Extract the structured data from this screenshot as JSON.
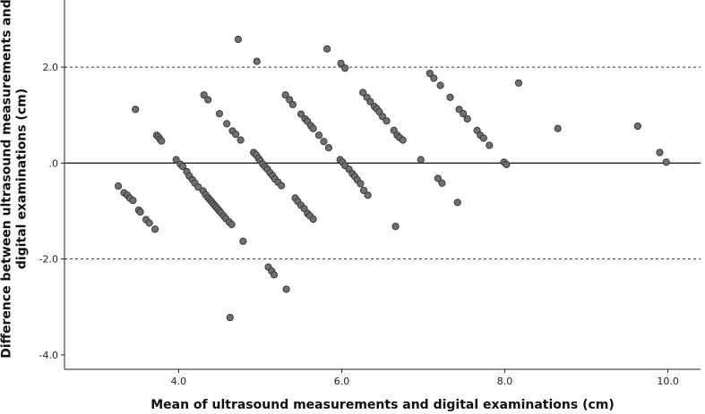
{
  "chart_data": {
    "type": "scatter",
    "title": "",
    "xlabel": "Mean of ultrasound measurements and digital examinations (cm)",
    "ylabel": "Difference between ultrasound measurements and digital examinations (cm)",
    "xlim": [
      2.6,
      10.4
    ],
    "ylim": [
      -4.3,
      3.4
    ],
    "x_ticks": [
      {
        "value": 4.0,
        "label": "4.0"
      },
      {
        "value": 6.0,
        "label": "6.0"
      },
      {
        "value": 8.0,
        "label": "8.0"
      },
      {
        "value": 10.0,
        "label": "10.0"
      }
    ],
    "y_ticks": [
      {
        "value": -4.0,
        "label": "-4.0"
      },
      {
        "value": -2.0,
        "label": "-2.0"
      },
      {
        "value": 0.0,
        "label": ".0"
      },
      {
        "value": 2.0,
        "label": "2.0"
      }
    ],
    "reference_lines": [
      {
        "y": 2.0,
        "style": "dashed"
      },
      {
        "y": 0.0,
        "style": "solid"
      },
      {
        "y": -2.0,
        "style": "dashed"
      }
    ],
    "grid": false,
    "points": [
      {
        "x": 3.26,
        "y": -0.48
      },
      {
        "x": 3.33,
        "y": -0.62
      },
      {
        "x": 3.37,
        "y": -0.67
      },
      {
        "x": 3.4,
        "y": -0.73
      },
      {
        "x": 3.44,
        "y": -0.78
      },
      {
        "x": 3.51,
        "y": -0.98
      },
      {
        "x": 3.53,
        "y": -1.02
      },
      {
        "x": 3.6,
        "y": -1.18
      },
      {
        "x": 3.64,
        "y": -1.25
      },
      {
        "x": 3.71,
        "y": -1.38
      },
      {
        "x": 3.47,
        "y": 1.12
      },
      {
        "x": 3.73,
        "y": 0.58
      },
      {
        "x": 3.75,
        "y": 0.55
      },
      {
        "x": 3.77,
        "y": 0.5
      },
      {
        "x": 3.79,
        "y": 0.46
      },
      {
        "x": 3.97,
        "y": 0.07
      },
      {
        "x": 4.02,
        "y": -0.02
      },
      {
        "x": 4.05,
        "y": -0.07
      },
      {
        "x": 4.1,
        "y": -0.18
      },
      {
        "x": 4.13,
        "y": -0.27
      },
      {
        "x": 4.17,
        "y": -0.35
      },
      {
        "x": 4.2,
        "y": -0.42
      },
      {
        "x": 4.24,
        "y": -0.5
      },
      {
        "x": 4.3,
        "y": -0.58
      },
      {
        "x": 4.33,
        "y": -0.66
      },
      {
        "x": 4.36,
        "y": -0.72
      },
      {
        "x": 4.38,
        "y": -0.76
      },
      {
        "x": 4.4,
        "y": -0.8
      },
      {
        "x": 4.42,
        "y": -0.84
      },
      {
        "x": 4.44,
        "y": -0.88
      },
      {
        "x": 4.46,
        "y": -0.92
      },
      {
        "x": 4.48,
        "y": -0.96
      },
      {
        "x": 4.5,
        "y": -1.0
      },
      {
        "x": 4.52,
        "y": -1.04
      },
      {
        "x": 4.55,
        "y": -1.1
      },
      {
        "x": 4.58,
        "y": -1.16
      },
      {
        "x": 4.62,
        "y": -1.23
      },
      {
        "x": 4.65,
        "y": -1.28
      },
      {
        "x": 4.79,
        "y": -1.63
      },
      {
        "x": 4.63,
        "y": -3.22
      },
      {
        "x": 4.31,
        "y": 1.42
      },
      {
        "x": 4.36,
        "y": 1.32
      },
      {
        "x": 4.5,
        "y": 1.03
      },
      {
        "x": 4.59,
        "y": 0.82
      },
      {
        "x": 4.66,
        "y": 0.67
      },
      {
        "x": 4.7,
        "y": 0.6
      },
      {
        "x": 4.76,
        "y": 0.48
      },
      {
        "x": 4.73,
        "y": 2.58
      },
      {
        "x": 4.96,
        "y": 2.12
      },
      {
        "x": 4.92,
        "y": 0.22
      },
      {
        "x": 4.95,
        "y": 0.17
      },
      {
        "x": 4.98,
        "y": 0.1
      },
      {
        "x": 5.0,
        "y": 0.05
      },
      {
        "x": 5.03,
        "y": -0.02
      },
      {
        "x": 5.06,
        "y": -0.08
      },
      {
        "x": 5.09,
        "y": -0.13
      },
      {
        "x": 5.12,
        "y": -0.2
      },
      {
        "x": 5.15,
        "y": -0.26
      },
      {
        "x": 5.18,
        "y": -0.33
      },
      {
        "x": 5.22,
        "y": -0.4
      },
      {
        "x": 5.26,
        "y": -0.47
      },
      {
        "x": 5.1,
        "y": -2.17
      },
      {
        "x": 5.14,
        "y": -2.25
      },
      {
        "x": 5.17,
        "y": -2.33
      },
      {
        "x": 5.32,
        "y": -2.63
      },
      {
        "x": 5.43,
        "y": -0.73
      },
      {
        "x": 5.46,
        "y": -0.8
      },
      {
        "x": 5.5,
        "y": -0.88
      },
      {
        "x": 5.54,
        "y": -0.95
      },
      {
        "x": 5.58,
        "y": -1.05
      },
      {
        "x": 5.61,
        "y": -1.1
      },
      {
        "x": 5.65,
        "y": -1.17
      },
      {
        "x": 5.31,
        "y": 1.42
      },
      {
        "x": 5.36,
        "y": 1.32
      },
      {
        "x": 5.4,
        "y": 1.22
      },
      {
        "x": 5.5,
        "y": 1.02
      },
      {
        "x": 5.55,
        "y": 0.92
      },
      {
        "x": 5.58,
        "y": 0.87
      },
      {
        "x": 5.62,
        "y": 0.78
      },
      {
        "x": 5.65,
        "y": 0.72
      },
      {
        "x": 5.72,
        "y": 0.58
      },
      {
        "x": 5.78,
        "y": 0.45
      },
      {
        "x": 5.84,
        "y": 0.32
      },
      {
        "x": 5.82,
        "y": 2.38
      },
      {
        "x": 5.99,
        "y": 2.08
      },
      {
        "x": 6.04,
        "y": 1.98
      },
      {
        "x": 5.98,
        "y": 0.07
      },
      {
        "x": 6.01,
        "y": 0.02
      },
      {
        "x": 6.04,
        "y": -0.05
      },
      {
        "x": 6.09,
        "y": -0.13
      },
      {
        "x": 6.13,
        "y": -0.22
      },
      {
        "x": 6.16,
        "y": -0.28
      },
      {
        "x": 6.19,
        "y": -0.35
      },
      {
        "x": 6.23,
        "y": -0.43
      },
      {
        "x": 6.27,
        "y": -0.57
      },
      {
        "x": 6.32,
        "y": -0.67
      },
      {
        "x": 6.26,
        "y": 1.47
      },
      {
        "x": 6.31,
        "y": 1.37
      },
      {
        "x": 6.35,
        "y": 1.28
      },
      {
        "x": 6.4,
        "y": 1.18
      },
      {
        "x": 6.43,
        "y": 1.13
      },
      {
        "x": 6.46,
        "y": 1.07
      },
      {
        "x": 6.5,
        "y": 0.97
      },
      {
        "x": 6.55,
        "y": 0.88
      },
      {
        "x": 6.64,
        "y": 0.68
      },
      {
        "x": 6.68,
        "y": 0.58
      },
      {
        "x": 6.71,
        "y": 0.53
      },
      {
        "x": 6.75,
        "y": 0.48
      },
      {
        "x": 6.66,
        "y": -1.32
      },
      {
        "x": 6.97,
        "y": 0.07
      },
      {
        "x": 7.08,
        "y": 1.87
      },
      {
        "x": 7.13,
        "y": 1.77
      },
      {
        "x": 7.21,
        "y": 1.62
      },
      {
        "x": 7.33,
        "y": 1.37
      },
      {
        "x": 7.44,
        "y": 1.12
      },
      {
        "x": 7.49,
        "y": 1.03
      },
      {
        "x": 7.54,
        "y": 0.92
      },
      {
        "x": 7.66,
        "y": 0.68
      },
      {
        "x": 7.7,
        "y": 0.58
      },
      {
        "x": 7.74,
        "y": 0.52
      },
      {
        "x": 7.81,
        "y": 0.37
      },
      {
        "x": 7.18,
        "y": -0.32
      },
      {
        "x": 7.23,
        "y": -0.42
      },
      {
        "x": 7.42,
        "y": -0.82
      },
      {
        "x": 7.99,
        "y": 0.02
      },
      {
        "x": 8.02,
        "y": -0.03
      },
      {
        "x": 8.17,
        "y": 1.67
      },
      {
        "x": 8.65,
        "y": 0.72
      },
      {
        "x": 9.63,
        "y": 0.77
      },
      {
        "x": 9.9,
        "y": 0.22
      },
      {
        "x": 9.98,
        "y": 0.02
      }
    ]
  }
}
